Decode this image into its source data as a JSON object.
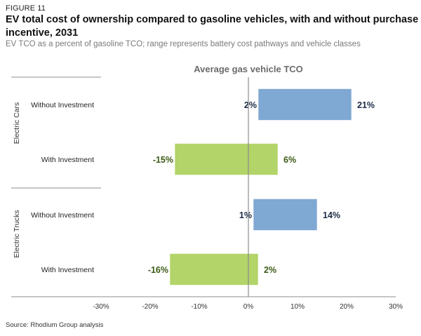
{
  "header": {
    "figure_label": "FIGURE 11",
    "title": "EV total cost of ownership compared to gasoline vehicles, with and without purchase incentive, 2031",
    "subtitle": "EV TCO as a percent of gasoline TCO; range represents battery cost pathways and vehicle classes"
  },
  "footer": {
    "source": "Source: Rhodium Group analysis"
  },
  "chart_data": {
    "type": "bar",
    "orientation": "horizontal-range",
    "title": "EV total cost of ownership compared to gasoline vehicles, with and without purchase incentive, 2031",
    "subtitle": "EV TCO as a percent of gasoline TCO; range represents battery cost pathways and vehicle classes",
    "xlabel": "",
    "ylabel": "",
    "xlim": [
      -30,
      30
    ],
    "x_ticks": [
      "-30%",
      "-20%",
      "-10%",
      "0%",
      "10%",
      "20%",
      "30%"
    ],
    "x_tick_values": [
      -30,
      -20,
      -10,
      0,
      10,
      20,
      30
    ],
    "reference_line": {
      "value": 0,
      "label": "Average gas vehicle TCO"
    },
    "grid": false,
    "legend": "none",
    "colors": {
      "without": "#7fa8d3",
      "with": "#b2d468"
    },
    "groups": [
      {
        "name": "Electric Cars",
        "rows": [
          {
            "label": "Without Investment",
            "series": "without",
            "low": 2,
            "high": 21,
            "low_label": "2%",
            "high_label": "21%"
          },
          {
            "label": "With Investment",
            "series": "with",
            "low": -15,
            "high": 6,
            "low_label": "-15%",
            "high_label": "6%"
          }
        ]
      },
      {
        "name": "Electric Trucks",
        "rows": [
          {
            "label": "Without Investment",
            "series": "without",
            "low": 1,
            "high": 14,
            "low_label": "1%",
            "high_label": "14%"
          },
          {
            "label": "With Investment",
            "series": "with",
            "low": -16,
            "high": 2,
            "low_label": "-16%",
            "high_label": "2%"
          }
        ]
      }
    ]
  }
}
